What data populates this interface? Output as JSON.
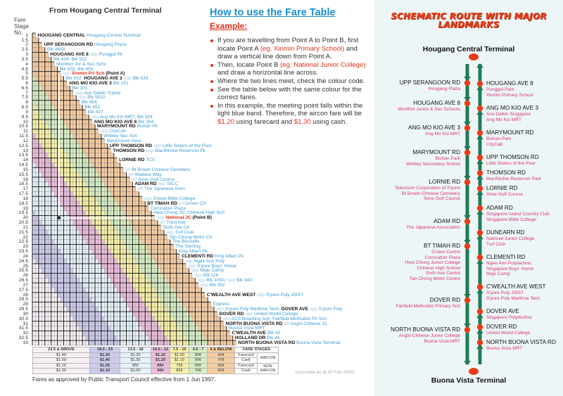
{
  "left": {
    "title": "From Hougang Central Terminal",
    "fare_stage_header": "Fare Stage No.",
    "point_a_stage": 5,
    "point_b_stage": 20,
    "band_colors": {
      "4 & BELOW": "#f6cda2",
      "4.5 - 7": "#d6edc4",
      "7.5 - 10": "#f7f1a8",
      "10.5 - 13": "#ebbddb",
      "13.5 - 18": "#e6f1f8",
      "18.5 - 23": "#cccbec",
      "23.5 & ABOVE": "#f7eef4"
    },
    "rows": [
      {
        "stage": "1",
        "parts": [
          [
            "b",
            "HOUGANG CENTRAL"
          ],
          [
            "l",
            " Hougang Central Terminal"
          ]
        ]
      },
      {
        "stage": "1.5",
        "parts": []
      },
      {
        "stage": "2",
        "parts": [
          [
            "b",
            "UPP SERANGOON RD"
          ],
          [
            "l",
            " Hougang Plaza"
          ]
        ]
      },
      {
        "stage": "2.5",
        "parts": [
          [
            "l",
            "Blk 465A"
          ]
        ]
      },
      {
        "stage": "3",
        "parts": [
          [
            "b",
            "HOUGANG AVE 8"
          ],
          [
            "o",
            " opp"
          ],
          [
            "l",
            " Punggol Pk"
          ]
        ]
      },
      {
        "stage": "3.5",
        "parts": [
          [
            "l",
            "Blk 434;  Blk 532"
          ]
        ]
      },
      {
        "stage": "4",
        "parts": [
          [
            "l",
            "Montfort Jnr & Sec Schs"
          ]
        ]
      },
      {
        "stage": "4.5",
        "parts": [
          [
            "l",
            "Blk 502;  Blk 608"
          ]
        ]
      },
      {
        "stage": "5",
        "parts": [
          [
            "o",
            "opp "
          ],
          [
            "r",
            "Xinmin Pri Sch"
          ],
          [
            "b",
            " (Point A)"
          ]
        ]
      },
      {
        "stage": "5.5",
        "parts": [
          [
            "l",
            "Blk 632;  "
          ],
          [
            "b",
            "HOUGANG AVE 2"
          ],
          [
            "o",
            " opp"
          ],
          [
            "l",
            " Blk 634"
          ]
        ]
      },
      {
        "stage": "6",
        "parts": [
          [
            "b",
            "ANG MO KIO AVE 3"
          ],
          [
            "l",
            " Blk 151"
          ]
        ]
      },
      {
        "stage": "6.5",
        "parts": [
          [
            "l",
            "Blk 101"
          ]
        ]
      },
      {
        "stage": "7",
        "parts": [
          [
            "o",
            "opp"
          ],
          [
            "l",
            " Ace Daikin S'pore"
          ]
        ]
      },
      {
        "stage": "7.5",
        "parts": [
          [
            "o",
            "opp"
          ],
          [
            "l",
            " Blk 5022"
          ]
        ]
      },
      {
        "stage": "8",
        "parts": [
          [
            "l",
            "Blk 454"
          ]
        ]
      },
      {
        "stage": "8.5",
        "parts": [
          [
            "l",
            "Blk 452"
          ]
        ]
      },
      {
        "stage": "9",
        "parts": [
          [
            "l",
            "Blk 427"
          ]
        ]
      },
      {
        "stage": "9.5",
        "parts": [
          [
            "o",
            "opp"
          ],
          [
            "l",
            " Ang Mo Kio MRT;  Blk 324"
          ]
        ]
      },
      {
        "stage": "10",
        "parts": [
          [
            "b",
            "ANG MO KIO AVE 6"
          ],
          [
            "l",
            " Blk 304"
          ]
        ]
      },
      {
        "stage": "10.5",
        "parts": [
          [
            "b",
            "MARYMOUNT RD"
          ],
          [
            "l",
            " Bishan Pk"
          ]
        ]
      },
      {
        "stage": "11",
        "parts": [
          [
            "o",
            "opp"
          ],
          [
            "l",
            " CityCab"
          ]
        ]
      },
      {
        "stage": "11.5",
        "parts": [
          [
            "l",
            "Whitley Sec Sch"
          ]
        ]
      },
      {
        "stage": "12",
        "parts": [
          [
            "l",
            "Marymount View"
          ]
        ]
      },
      {
        "stage": "12.5",
        "parts": [
          [
            "b",
            "UPP THOMSON RD"
          ],
          [
            "o",
            " opp"
          ],
          [
            "l",
            " Little Sisters of the Poor"
          ]
        ]
      },
      {
        "stage": "13",
        "parts": [
          [
            "b",
            "THOMSON RD"
          ],
          [
            "o",
            " opp"
          ],
          [
            "l",
            " MacRitchie Reservoir Pk"
          ]
        ]
      },
      {
        "stage": "13.5",
        "parts": []
      },
      {
        "stage": "14",
        "parts": [
          [
            "b",
            "LORNIE RD"
          ],
          [
            "l",
            " TCS"
          ]
        ]
      },
      {
        "stage": "14.5",
        "parts": []
      },
      {
        "stage": "15",
        "parts": [
          [
            "o",
            "b/f"
          ],
          [
            "l",
            " Bt Brown Chinese Cemetery"
          ]
        ]
      },
      {
        "stage": "15.5",
        "parts": [
          [
            "o",
            "b/f"
          ],
          [
            "l",
            " Wallace Way"
          ]
        ]
      },
      {
        "stage": "16",
        "parts": [
          [
            "o",
            "b/f"
          ],
          [
            "l",
            " Sime Golf Course"
          ]
        ]
      },
      {
        "stage": "16.5",
        "parts": [
          [
            "b",
            "ADAM RD"
          ],
          [
            "o",
            " opp"
          ],
          [
            "l",
            " SICC"
          ]
        ]
      },
      {
        "stage": "17",
        "parts": [
          [
            "o",
            "aft"
          ],
          [
            "l",
            " The Japanese Assn"
          ]
        ]
      },
      {
        "stage": "17.5",
        "parts": []
      },
      {
        "stage": "18",
        "parts": [
          [
            "o",
            "opp"
          ],
          [
            "l",
            " S'pore Bible College"
          ]
        ]
      },
      {
        "stage": "18.5",
        "parts": [
          [
            "b",
            "BT TIMAH RD"
          ],
          [
            "o",
            " b/f"
          ],
          [
            "l",
            " Crown Ctr"
          ]
        ]
      },
      {
        "stage": "19",
        "parts": [
          [
            "l",
            "Coronation Plaza"
          ]
        ]
      },
      {
        "stage": "19.5",
        "parts": [
          [
            "l",
            "Hwa Chong JC;  Chinese High Sch"
          ]
        ]
      },
      {
        "stage": "20",
        "parts": [
          [
            "o",
            "opp "
          ],
          [
            "r",
            "National JC"
          ],
          [
            "b",
            " (Point B)"
          ]
        ]
      },
      {
        "stage": "20.5",
        "parts": [
          [
            "o",
            "aft"
          ],
          [
            "l",
            " Third Ave"
          ]
        ]
      },
      {
        "stage": "21",
        "parts": [
          [
            "l",
            "Sixth Ave Ctr"
          ]
        ]
      },
      {
        "stage": "21.5",
        "parts": [
          [
            "o",
            "opp"
          ],
          [
            "l",
            " Turf Club"
          ]
        ]
      },
      {
        "stage": "22",
        "parts": [
          [
            "l",
            "Tan Chong Motor Ctr"
          ]
        ]
      },
      {
        "stage": "22.5",
        "parts": [
          [
            "l",
            "The Blissville"
          ]
        ]
      },
      {
        "stage": "23",
        "parts": [
          [
            "l",
            "The Sterling"
          ]
        ]
      },
      {
        "stage": "23.5",
        "parts": [
          [
            "l",
            "King Albert Pk"
          ]
        ]
      },
      {
        "stage": "24",
        "parts": [
          [
            "b",
            "CLEMENTI RD"
          ],
          [
            "l",
            " King Albert Pk"
          ]
        ]
      },
      {
        "stage": "24.5",
        "parts": [
          [
            "o",
            "opp"
          ],
          [
            "l",
            " Ngee Ann Poly"
          ]
        ]
      },
      {
        "stage": "25",
        "parts": [
          [
            "o",
            "opp"
          ],
          [
            "l",
            " S'pore Boys' Home"
          ]
        ]
      },
      {
        "stage": "25.5",
        "parts": [
          [
            "o",
            "opp"
          ],
          [
            "l",
            " Maju Camp"
          ]
        ]
      },
      {
        "stage": "26",
        "parts": [
          [
            "o",
            "opp"
          ],
          [
            "l",
            " Blk 116"
          ]
        ]
      },
      {
        "stage": "26.5",
        "parts": [
          [
            "o",
            "opp"
          ],
          [
            "l",
            " Blk 109A;"
          ],
          [
            "o",
            "  opp"
          ],
          [
            "l",
            " Blk 343"
          ]
        ]
      },
      {
        "stage": "27",
        "parts": [
          [
            "o",
            "opp"
          ],
          [
            "l",
            " Blk 352"
          ]
        ]
      },
      {
        "stage": "27.5",
        "parts": []
      },
      {
        "stage": "28",
        "parts": [
          [
            "b",
            "C'WEALTH AVE WEST"
          ],
          [
            "o",
            " opp"
          ],
          [
            "l",
            " S'pore Poly JSIST"
          ]
        ]
      },
      {
        "stage": "28.5",
        "parts": []
      },
      {
        "stage": "29",
        "parts": [
          [
            "l",
            "Express"
          ]
        ]
      },
      {
        "stage": "29.5",
        "parts": [
          [
            "o",
            "opp"
          ],
          [
            "l",
            " S'pore Poly Maritime Tech;  "
          ],
          [
            "b",
            "DOVER AVE"
          ],
          [
            "o",
            " opp"
          ],
          [
            "l",
            " S'pore Poly"
          ]
        ]
      },
      {
        "stage": "30",
        "parts": [
          [
            "b",
            "DOVER RD"
          ],
          [
            "o",
            " opp"
          ],
          [
            "l",
            " United World College"
          ]
        ]
      },
      {
        "stage": "30.5",
        "parts": [
          [
            "o",
            "opp"
          ],
          [
            "l",
            " ACS Boarding Sch;  Fairfield Methodist Pri Sch"
          ]
        ]
      },
      {
        "stage": "31",
        "parts": [
          [
            "b",
            "NORTH BUONA VISTA RD"
          ],
          [
            "o",
            " aft"
          ],
          [
            "l",
            " Anglo-Chinese JC"
          ]
        ]
      },
      {
        "stage": "31.5",
        "parts": [
          [
            "l",
            "Buona Vista MRT"
          ]
        ]
      },
      {
        "stage": "32",
        "parts": [
          [
            "b",
            "C'WEALTH AVE"
          ],
          [
            "l",
            " Blk 43"
          ]
        ]
      },
      {
        "stage": "32.5",
        "parts": [
          [
            "b",
            "HOLLAND DR"
          ],
          [
            "l",
            " Blk 46"
          ]
        ]
      },
      {
        "stage": "33",
        "parts": [
          [
            "b",
            "NORTH BUONA VISTA RD"
          ],
          [
            "l",
            " Buona Vista Terminal"
          ]
        ]
      }
    ]
  },
  "fare_table": {
    "headers": [
      "23.5 & ABOVE",
      "18.5 - 23",
      "13.5 - 18",
      "10.5 - 13",
      "7.5 - 10",
      "4.5 - 7",
      "4 & BELOW",
      "FARE STAGES"
    ],
    "header_colors": [
      "#f7eef4",
      "#cccbec",
      "#e6f1f8",
      "#ebbddb",
      "#f7f1a8",
      "#d6edc4",
      "#f6cda2",
      "#ffffff"
    ],
    "rows": [
      {
        "fares": [
          "$1.40",
          "$1.30",
          "$1.20",
          "$1.10",
          "$1.00",
          "80¢",
          "60¢"
        ],
        "payment": "Farecard",
        "group": "AIRCON"
      },
      {
        "fares": [
          "$1.50",
          "$1.40",
          "$1.30",
          "$1.20",
          "$1.10",
          "90¢",
          "70¢"
        ],
        "payment": "Cash"
      },
      {
        "fares": [
          "$1.15",
          "$1.05",
          "95¢",
          "85¢",
          "75¢",
          "65¢",
          "55¢"
        ],
        "payment": "Farecard",
        "group": "NON AIRCON"
      },
      {
        "fares": [
          "$1.20",
          "$1.10",
          "$1.00",
          "90¢",
          "80¢",
          "70¢",
          "60¢"
        ],
        "payment": "Cash"
      }
    ],
    "approved_note": "Fares as approved by Public Transport Council effective from 1 Jun 1997.",
    "accuracy_note": "(Accurate as at 20 Feb 2000)"
  },
  "howto": {
    "title": "How to use the Fare Table",
    "example_label": "Example:",
    "b1a": "If you are travelling from Point A to Point B, first locate Point A ",
    "b1r": "(eg. Xinmin Primary School)",
    "b1b": " and draw a vertical line down from Point A.",
    "b2a": "Then, locate Point B ",
    "b2r": "(eg. National Junior College)",
    "b2b": " and draw a horizontal line across.",
    "b3": "Where the two lines meet, check the colour code.",
    "b4": "See the table below with the same colour for the correct fares.",
    "b5a": "In this example, the meeting point falls within the light blue band.  Therefore, the aircon fare will be ",
    "b5r1": "$1.20",
    "b5b": " using farecard and ",
    "b5r2": "$1.30",
    "b5c": " using cash."
  },
  "route": {
    "title_line1": "SCHEMATIC ROUTE WITH MAJOR",
    "title_line2": "LANDMARKS",
    "start": "Hougang Central Terminal",
    "end": "Buona Vista Terminal",
    "line_color": "#1e7a55",
    "stop_color": "#ee3a16",
    "outbound": [
      {
        "name": "UPP SERANGOON RD",
        "landmarks": [
          "Hougang Plaza"
        ]
      },
      {
        "name": "HOUGANG AVE 8",
        "landmarks": [
          "Montfort Junior & Sec Schools"
        ]
      },
      {
        "name": "ANG MO KIO AVE 3",
        "landmarks": [
          "Ang Mo Kio MRT"
        ]
      },
      {
        "name": "MARYMOUNT RD",
        "landmarks": [
          "Bishan Park",
          "Whitley Secondary School"
        ]
      },
      {
        "name": "LORNIE RD",
        "landmarks": [
          "Television Corporation of S'pore",
          "Bt Brown Chinese Cemetery",
          "Sime Golf Course"
        ]
      },
      {
        "name": "ADAM RD",
        "landmarks": [
          "The Japanese Association"
        ]
      },
      {
        "name": "BT TIMAH RD",
        "landmarks": [
          "Crown Centre",
          "Coronation Plaza",
          "Hwa Chong Junior College",
          "Chinese High School",
          "Sixth Ave Centre",
          "Tan Chong Motor Centre"
        ]
      },
      {
        "name": "DOVER RD",
        "landmarks": [
          "Fairfield Methodist Primary Sch"
        ]
      },
      {
        "name": "NORTH BUONA VISTA RD",
        "landmarks": [
          "Anglo-Chinese Junior College",
          "Buona Vista MRT"
        ]
      }
    ],
    "inbound": [
      {
        "name": "HOUGANG AVE 8",
        "landmarks": [
          "Punggol Park",
          "Xinmin Primary School"
        ]
      },
      {
        "name": "ANG MO KIO AVE 3",
        "landmarks": [
          "Ace Daikin Singapore",
          "Ang Mo Kio MRT"
        ]
      },
      {
        "name": "MARYMOUNT RD",
        "landmarks": [
          "Bishan Park",
          "CityCab"
        ]
      },
      {
        "name": "UPP THOMSON RD",
        "landmarks": [
          "Little Sisters of the Poor"
        ]
      },
      {
        "name": "THOMSON RD",
        "landmarks": [
          "MacRitchie Reservoir Park"
        ]
      },
      {
        "name": "LORNIE RD",
        "landmarks": [
          "Sime Golf Course"
        ]
      },
      {
        "name": "ADAM RD",
        "landmarks": [
          "Singapore Island Country Club",
          "Singapore Bible College"
        ]
      },
      {
        "name": "DUNEARN RD",
        "landmarks": [
          "National Junior College",
          "Turf Club"
        ]
      },
      {
        "name": "CLEMENTI RD",
        "landmarks": [
          "Ngee Ann Polytechnic",
          "Singapore Boys' Home",
          "Maju Camp"
        ]
      },
      {
        "name": "C'WEALTH AVE WEST",
        "landmarks": [
          "S'pore Poly JSIST",
          "S'pore Poly Maritime Tech"
        ]
      },
      {
        "name": "DOVER AVE",
        "landmarks": [
          "Singapore Polytechnic"
        ]
      },
      {
        "name": "DOVER RD",
        "landmarks": [
          "United World College"
        ]
      },
      {
        "name": "NORTH BUONA VISTA RD",
        "landmarks": [
          "Buona Vista MRT"
        ]
      }
    ]
  }
}
